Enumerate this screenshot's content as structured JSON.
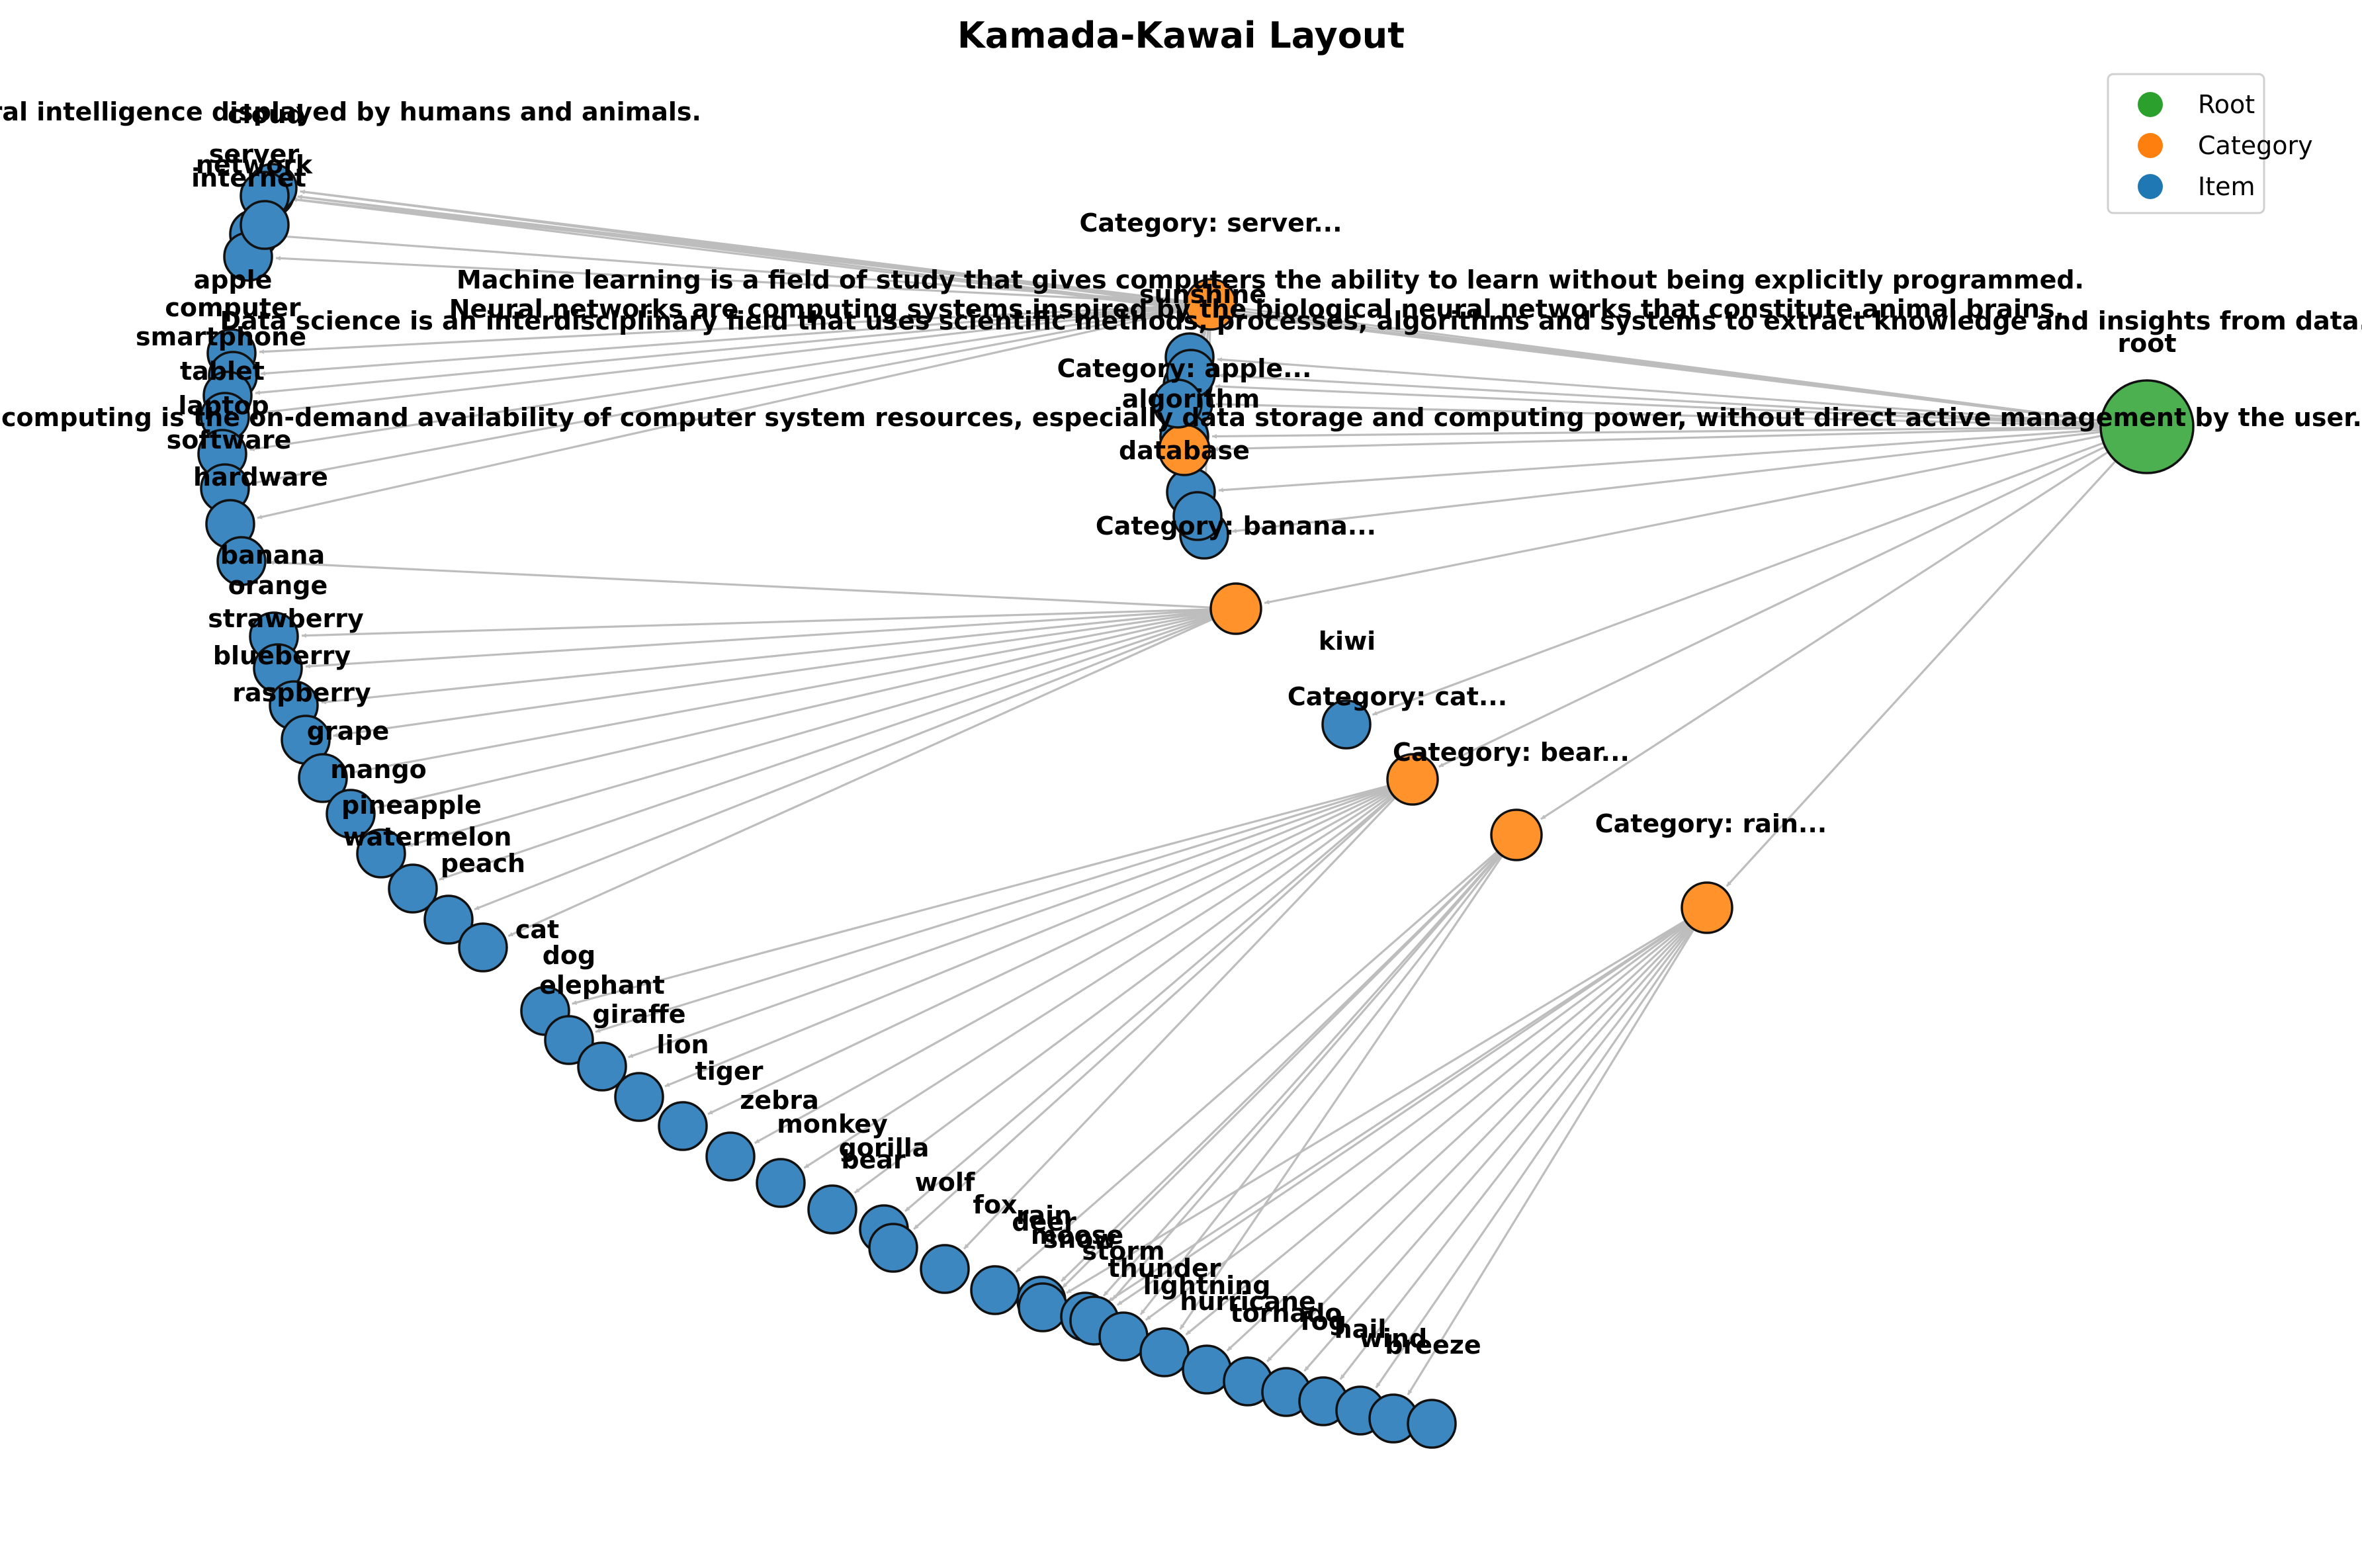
{
  "title": "Kamada-Kawai Layout",
  "legend": [
    {
      "label": "Root",
      "color": "#2ca02c"
    },
    {
      "label": "Category",
      "color": "#ff7f0e"
    },
    {
      "label": "Item",
      "color": "#1f77b4"
    }
  ],
  "colors": {
    "root": "#4caf50",
    "category": "#ff922b",
    "item": "#3c87c0",
    "edge": "#bdbdbd"
  },
  "nodes": [
    {
      "id": "root",
      "label": "root",
      "type": "root"
    },
    {
      "id": "cat-server",
      "label": "Category: server...",
      "type": "category"
    },
    {
      "id": "cat-apple",
      "label": "Category: apple...",
      "type": "category"
    },
    {
      "id": "cat-banana",
      "label": "Category: banana...",
      "type": "category"
    },
    {
      "id": "cat-cat",
      "label": "Category: cat...",
      "type": "category"
    },
    {
      "id": "cat-bear",
      "label": "Category: bear...",
      "type": "category"
    },
    {
      "id": "cat-rain",
      "label": "Category: rain...",
      "type": "category"
    },
    {
      "id": "ai",
      "label": "Artificial intelligence is intelligence demonstrated by machines, unlike the natural intelligence displayed by humans and animals.",
      "type": "item"
    },
    {
      "id": "cloud",
      "label": "cloud",
      "type": "item"
    },
    {
      "id": "server",
      "label": "server",
      "type": "item"
    },
    {
      "id": "network",
      "label": "network",
      "type": "item"
    },
    {
      "id": "internet",
      "label": "internet",
      "type": "item"
    },
    {
      "id": "ml",
      "label": "Machine learning is a field of study that gives computers the ability to learn without being explicitly programmed.",
      "type": "item"
    },
    {
      "id": "nn",
      "label": "Neural networks are computing systems inspired by the biological neural networks that constitute animal brains.",
      "type": "item"
    },
    {
      "id": "ds",
      "label": "Data science is an interdisciplinary field that uses scientific methods, processes, algorithms and systems to extract knowledge and insights from data.",
      "type": "item"
    },
    {
      "id": "cc",
      "label": "Cloud computing is the on-demand availability of computer system resources, especially data storage and computing power, without direct active management by the user.",
      "type": "item"
    },
    {
      "id": "sunshine",
      "label": "sunshine",
      "type": "item"
    },
    {
      "id": "algorithm",
      "label": "algorithm",
      "type": "item"
    },
    {
      "id": "database",
      "label": "database",
      "type": "item"
    },
    {
      "id": "apple",
      "label": "apple",
      "type": "item"
    },
    {
      "id": "computer",
      "label": "computer",
      "type": "item"
    },
    {
      "id": "smartphone",
      "label": "smartphone",
      "type": "item"
    },
    {
      "id": "tablet",
      "label": "tablet",
      "type": "item"
    },
    {
      "id": "laptop",
      "label": "laptop",
      "type": "item"
    },
    {
      "id": "software",
      "label": "software",
      "type": "item"
    },
    {
      "id": "hardware",
      "label": "hardware",
      "type": "item"
    },
    {
      "id": "banana",
      "label": "banana",
      "type": "item"
    },
    {
      "id": "orange",
      "label": "orange",
      "type": "item"
    },
    {
      "id": "strawberry",
      "label": "strawberry",
      "type": "item"
    },
    {
      "id": "blueberry",
      "label": "blueberry",
      "type": "item"
    },
    {
      "id": "raspberry",
      "label": "raspberry",
      "type": "item"
    },
    {
      "id": "grape",
      "label": "grape",
      "type": "item"
    },
    {
      "id": "mango",
      "label": "mango",
      "type": "item"
    },
    {
      "id": "pineapple",
      "label": "pineapple",
      "type": "item"
    },
    {
      "id": "watermelon",
      "label": "watermelon",
      "type": "item"
    },
    {
      "id": "peach",
      "label": "peach",
      "type": "item"
    },
    {
      "id": "kiwi",
      "label": "kiwi",
      "type": "item"
    },
    {
      "id": "cat",
      "label": "cat",
      "type": "item"
    },
    {
      "id": "dog",
      "label": "dog",
      "type": "item"
    },
    {
      "id": "elephant",
      "label": "elephant",
      "type": "item"
    },
    {
      "id": "giraffe",
      "label": "giraffe",
      "type": "item"
    },
    {
      "id": "lion",
      "label": "lion",
      "type": "item"
    },
    {
      "id": "tiger",
      "label": "tiger",
      "type": "item"
    },
    {
      "id": "zebra",
      "label": "zebra",
      "type": "item"
    },
    {
      "id": "monkey",
      "label": "monkey",
      "type": "item"
    },
    {
      "id": "gorilla",
      "label": "gorilla",
      "type": "item"
    },
    {
      "id": "bear",
      "label": "bear",
      "type": "item"
    },
    {
      "id": "wolf",
      "label": "wolf",
      "type": "item"
    },
    {
      "id": "fox",
      "label": "fox",
      "type": "item"
    },
    {
      "id": "deer",
      "label": "deer",
      "type": "item"
    },
    {
      "id": "moose",
      "label": "moose",
      "type": "item"
    },
    {
      "id": "rain",
      "label": "rain",
      "type": "item"
    },
    {
      "id": "snow",
      "label": "snow",
      "type": "item"
    },
    {
      "id": "storm",
      "label": "storm",
      "type": "item"
    },
    {
      "id": "thunder",
      "label": "thunder",
      "type": "item"
    },
    {
      "id": "lightning",
      "label": "lightning",
      "type": "item"
    },
    {
      "id": "hurricane",
      "label": "hurricane",
      "type": "item"
    },
    {
      "id": "tornado",
      "label": "tornado",
      "type": "item"
    },
    {
      "id": "fog",
      "label": "fog",
      "type": "item"
    },
    {
      "id": "hail",
      "label": "hail",
      "type": "item"
    },
    {
      "id": "wind",
      "label": "wind",
      "type": "item"
    },
    {
      "id": "breeze",
      "label": "breeze",
      "type": "item"
    }
  ],
  "edges": [
    [
      "root",
      "cat-server"
    ],
    [
      "root",
      "cat-apple"
    ],
    [
      "root",
      "cat-banana"
    ],
    [
      "root",
      "cat-cat"
    ],
    [
      "root",
      "cat-bear"
    ],
    [
      "root",
      "cat-rain"
    ],
    [
      "root",
      "ai"
    ],
    [
      "root",
      "cloud"
    ],
    [
      "root",
      "server"
    ],
    [
      "root",
      "ml"
    ],
    [
      "root",
      "nn"
    ],
    [
      "root",
      "ds"
    ],
    [
      "root",
      "cc"
    ],
    [
      "root",
      "sunshine"
    ],
    [
      "root",
      "algorithm"
    ],
    [
      "root",
      "database"
    ],
    [
      "root",
      "kiwi"
    ],
    [
      "cat-server",
      "server"
    ],
    [
      "cat-server",
      "network"
    ],
    [
      "cat-server",
      "internet"
    ],
    [
      "cat-server",
      "cloud"
    ],
    [
      "cat-server",
      "ai"
    ],
    [
      "cat-server",
      "apple"
    ],
    [
      "cat-server",
      "computer"
    ],
    [
      "cat-server",
      "smartphone"
    ],
    [
      "cat-server",
      "tablet"
    ],
    [
      "cat-server",
      "laptop"
    ],
    [
      "cat-server",
      "software"
    ],
    [
      "cat-server",
      "hardware"
    ],
    [
      "cat-server",
      "ml"
    ],
    [
      "cat-server",
      "nn"
    ],
    [
      "cat-server",
      "ds"
    ],
    [
      "cat-server",
      "cc"
    ],
    [
      "cat-server",
      "sunshine"
    ],
    [
      "cat-server",
      "algorithm"
    ],
    [
      "cat-server",
      "database"
    ],
    [
      "cat-banana",
      "banana"
    ],
    [
      "cat-banana",
      "orange"
    ],
    [
      "cat-banana",
      "strawberry"
    ],
    [
      "cat-banana",
      "blueberry"
    ],
    [
      "cat-banana",
      "raspberry"
    ],
    [
      "cat-banana",
      "grape"
    ],
    [
      "cat-banana",
      "mango"
    ],
    [
      "cat-banana",
      "pineapple"
    ],
    [
      "cat-banana",
      "watermelon"
    ],
    [
      "cat-banana",
      "peach"
    ],
    [
      "cat-banana",
      "cat"
    ],
    [
      "cat-cat",
      "dog"
    ],
    [
      "cat-cat",
      "elephant"
    ],
    [
      "cat-cat",
      "giraffe"
    ],
    [
      "cat-cat",
      "lion"
    ],
    [
      "cat-cat",
      "tiger"
    ],
    [
      "cat-cat",
      "zebra"
    ],
    [
      "cat-cat",
      "monkey"
    ],
    [
      "cat-cat",
      "gorilla"
    ],
    [
      "cat-cat",
      "bear"
    ],
    [
      "cat-cat",
      "wolf"
    ],
    [
      "cat-cat",
      "fox"
    ],
    [
      "cat-bear",
      "deer"
    ],
    [
      "cat-bear",
      "moose"
    ],
    [
      "cat-bear",
      "rain"
    ],
    [
      "cat-bear",
      "snow"
    ],
    [
      "cat-bear",
      "storm"
    ],
    [
      "cat-bear",
      "thunder"
    ],
    [
      "cat-bear",
      "lightning"
    ],
    [
      "cat-rain",
      "hurricane"
    ],
    [
      "cat-rain",
      "tornado"
    ],
    [
      "cat-rain",
      "fog"
    ],
    [
      "cat-rain",
      "hail"
    ],
    [
      "cat-rain",
      "wind"
    ],
    [
      "cat-rain",
      "breeze"
    ],
    [
      "cat-rain",
      "snow"
    ],
    [
      "cat-rain",
      "thunder"
    ],
    [
      "cat-rain",
      "lightning"
    ],
    [
      "cat-rain",
      "storm"
    ],
    [
      "cat-rain",
      "rain"
    ]
  ]
}
